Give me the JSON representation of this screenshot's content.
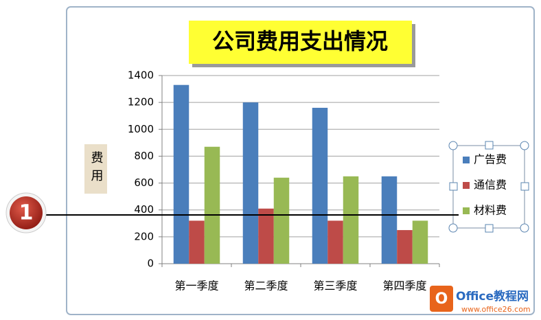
{
  "chart_data": {
    "type": "bar",
    "title": "公司费用支出情况",
    "y_label": "费用",
    "categories": [
      "第一季度",
      "第二季度",
      "第三季度",
      "第四季度"
    ],
    "series": [
      {
        "name": "广告费",
        "color": "#4a7ebb",
        "values": [
          1330,
          1200,
          1160,
          650
        ]
      },
      {
        "name": "通信费",
        "color": "#be4b48",
        "values": [
          320,
          410,
          320,
          250
        ]
      },
      {
        "name": "材料费",
        "color": "#98b954",
        "values": [
          870,
          640,
          650,
          320
        ]
      }
    ],
    "ylim": [
      0,
      1400
    ],
    "yticks": [
      0,
      200,
      400,
      600,
      800,
      1000,
      1200,
      1400
    ],
    "grid": true,
    "legend": "right"
  },
  "annotation": "1",
  "watermark": {
    "brand": "Office教程网",
    "url": "www.office26.com"
  }
}
